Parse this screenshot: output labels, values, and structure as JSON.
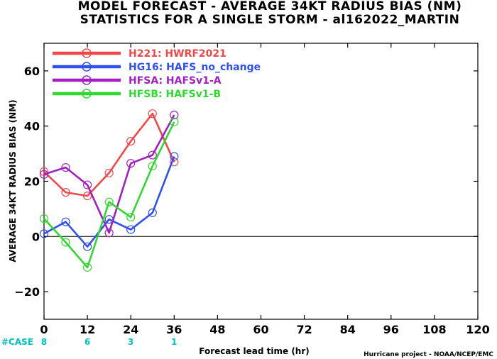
{
  "chart_data": {
    "type": "line",
    "title": "MODEL FORECAST - AVERAGE 34KT RADIUS BIAS (NM)",
    "subtitle": "STATISTICS FOR A SINGLE STORM - al162022_MARTIN",
    "xlabel": "Forecast lead time (hr)",
    "ylabel": "AVERAGE 34KT RADIUS BIAS (NM)",
    "xlim": [
      0,
      120
    ],
    "ylim": [
      -30,
      70
    ],
    "x_ticks": [
      0,
      12,
      24,
      36,
      48,
      60,
      72,
      84,
      96,
      108,
      120
    ],
    "y_ticks": [
      -20,
      0,
      20,
      40,
      60
    ],
    "zero_line": true,
    "grid": false,
    "legend_position": "top-left",
    "series": [
      {
        "name": "H221: HWRF2021",
        "color": "#f04848",
        "x": [
          0,
          6,
          12,
          18,
          24,
          30,
          36
        ],
        "values": [
          23.5,
          16,
          14.7,
          23,
          34.5,
          44.5,
          27
        ]
      },
      {
        "name": "HG16: HAFS_no_change",
        "color": "#3050f0",
        "x": [
          0,
          6,
          12,
          18,
          24,
          30,
          36
        ],
        "values": [
          1,
          5.3,
          -3.7,
          6.2,
          2.5,
          8.6,
          29
        ]
      },
      {
        "name": "HFSA: HAFSv1-A",
        "color": "#a020c0",
        "x": [
          0,
          6,
          12,
          18,
          24,
          30,
          36
        ],
        "values": [
          22.5,
          25,
          18.7,
          1.3,
          26.5,
          29.5,
          44
        ]
      },
      {
        "name": "HFSB: HAFSv1-B",
        "color": "#30d830",
        "x": [
          0,
          6,
          12,
          18,
          24,
          30,
          36
        ],
        "values": [
          6.5,
          -2.1,
          -11.2,
          12.5,
          7,
          25.5,
          41.5
        ]
      }
    ],
    "cases": {
      "label": "#CASE",
      "items": [
        {
          "x": 0,
          "label": "8"
        },
        {
          "x": 12,
          "label": "6"
        },
        {
          "x": 24,
          "label": "3"
        },
        {
          "x": 36,
          "label": "1"
        }
      ]
    },
    "footer": "Hurricane project - NOAA/NCEP/EMC"
  }
}
